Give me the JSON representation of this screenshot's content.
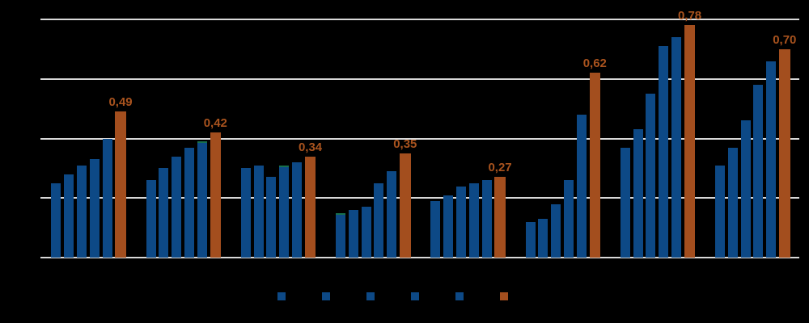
{
  "colors": {
    "background": "#000000",
    "gridline": "#D9D9D9",
    "bar_blue": "#0D4986",
    "bar_orange": "#A34E1E",
    "label_orange": "#A9531E",
    "teal_edge": "#17704D"
  },
  "chart_data": {
    "type": "bar",
    "title": "",
    "xlabel": "",
    "ylabel": "",
    "ylim": [
      0,
      0.8
    ],
    "ytick_values": [
      0,
      0.2,
      0.4,
      0.6,
      0.8
    ],
    "grid": true,
    "legend_position": "bottom",
    "legend_marker_colors": [
      "blue",
      "blue",
      "blue",
      "blue",
      "blue",
      "orange"
    ],
    "decimal_separator": ",",
    "groups": [
      {
        "blue_values": [
          0.25,
          0.28,
          0.31,
          0.33,
          0.4
        ],
        "orange_value": 0.49,
        "orange_label": "0,49"
      },
      {
        "blue_values": [
          0.26,
          0.3,
          0.34,
          0.37,
          0.39
        ],
        "orange_value": 0.42,
        "orange_label": "0,42"
      },
      {
        "blue_values": [
          0.3,
          0.31,
          0.27,
          0.31,
          0.32
        ],
        "orange_value": 0.34,
        "orange_label": "0,34"
      },
      {
        "blue_values": [
          0.15,
          0.16,
          0.17,
          0.25,
          0.29
        ],
        "orange_value": 0.35,
        "orange_label": "0,35"
      },
      {
        "blue_values": [
          0.19,
          0.21,
          0.24,
          0.25,
          0.26
        ],
        "orange_value": 0.27,
        "orange_label": "0,27"
      },
      {
        "blue_values": [
          0.12,
          0.13,
          0.18,
          0.26,
          0.48
        ],
        "orange_value": 0.62,
        "orange_label": "0,62"
      },
      {
        "blue_values": [
          0.37,
          0.43,
          0.55,
          0.71,
          0.74
        ],
        "orange_value": 0.78,
        "orange_label": "0,78"
      },
      {
        "blue_values": [
          0.31,
          0.37,
          0.46,
          0.58,
          0.66
        ],
        "orange_value": 0.7,
        "orange_label": "0,70"
      }
    ],
    "teal_top_edge_bars": [
      {
        "group_index": 1,
        "bar_index": 4
      },
      {
        "group_index": 2,
        "bar_index": 3
      },
      {
        "group_index": 3,
        "bar_index": 0
      }
    ]
  }
}
